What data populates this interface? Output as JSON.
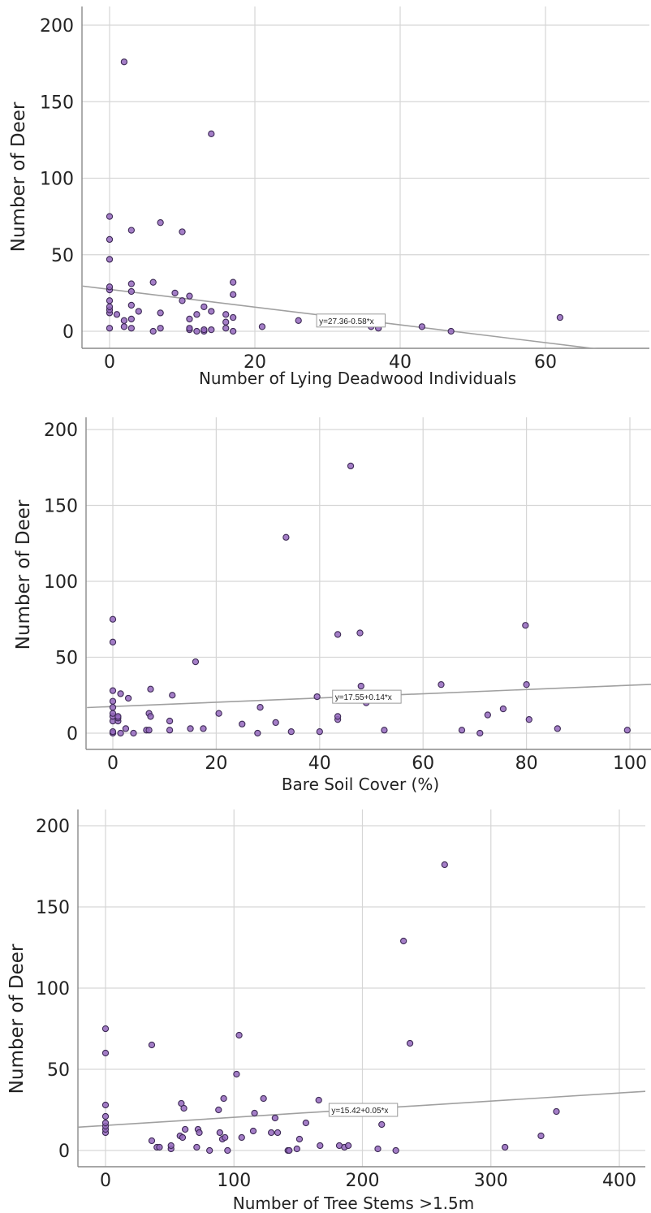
{
  "chart_data": [
    {
      "type": "scatter",
      "xlabel": "Number of Lying Deadwood Individuals",
      "ylabel": "Number of Deer",
      "xlim": [
        -3.7,
        74
      ],
      "ylim": [
        -11,
        210
      ],
      "xticks": [
        0,
        20,
        40,
        60
      ],
      "yticks": [
        0,
        50,
        100,
        150,
        200
      ],
      "grid": true,
      "point_color": "#9467bd",
      "fit": {
        "label": "y=27.36-0.58*x",
        "intercept": 27.36,
        "slope": -0.58,
        "label_at": [
          28.5,
          7
        ]
      },
      "points": [
        [
          0,
          2
        ],
        [
          0,
          12
        ],
        [
          0,
          14
        ],
        [
          0,
          16
        ],
        [
          0,
          20
        ],
        [
          0,
          27
        ],
        [
          0,
          29
        ],
        [
          0,
          47
        ],
        [
          0,
          60
        ],
        [
          0,
          75
        ],
        [
          1,
          11
        ],
        [
          2,
          3
        ],
        [
          2,
          7
        ],
        [
          2,
          176
        ],
        [
          3,
          2
        ],
        [
          3,
          8
        ],
        [
          3,
          17
        ],
        [
          3,
          26
        ],
        [
          3,
          31
        ],
        [
          3,
          66
        ],
        [
          4,
          13
        ],
        [
          6,
          0
        ],
        [
          6,
          32
        ],
        [
          7,
          2
        ],
        [
          7,
          12
        ],
        [
          7,
          71
        ],
        [
          9,
          25
        ],
        [
          10,
          20
        ],
        [
          10,
          65
        ],
        [
          11,
          1
        ],
        [
          11,
          2
        ],
        [
          11,
          8
        ],
        [
          11,
          23
        ],
        [
          12,
          0
        ],
        [
          12,
          11
        ],
        [
          13,
          0
        ],
        [
          13,
          1
        ],
        [
          13,
          16
        ],
        [
          14,
          1
        ],
        [
          14,
          13
        ],
        [
          14,
          129
        ],
        [
          16,
          2
        ],
        [
          16,
          6
        ],
        [
          16,
          11
        ],
        [
          17,
          0
        ],
        [
          17,
          9
        ],
        [
          17,
          24
        ],
        [
          17,
          32
        ],
        [
          21,
          3
        ],
        [
          26,
          7
        ],
        [
          36,
          3
        ],
        [
          37,
          2
        ],
        [
          43,
          3
        ],
        [
          47,
          0
        ],
        [
          62,
          9
        ]
      ]
    },
    {
      "type": "scatter",
      "xlabel": "Bare Soil Cover (%)",
      "ylabel": "Number of Deer",
      "xlim": [
        -5,
        103
      ],
      "ylim": [
        -11,
        210
      ],
      "xticks": [
        0,
        20,
        40,
        60,
        80,
        100
      ],
      "yticks": [
        0,
        50,
        100,
        150,
        200
      ],
      "grid": true,
      "point_color": "#9467bd",
      "fit": {
        "label": "y=17.55+0.14*x",
        "intercept": 17.55,
        "slope": 0.14,
        "label_at": [
          42.5,
          24
        ]
      },
      "points": [
        [
          0,
          0
        ],
        [
          0,
          1
        ],
        [
          0,
          8
        ],
        [
          0,
          11
        ],
        [
          0,
          13
        ],
        [
          0,
          17
        ],
        [
          0,
          21
        ],
        [
          0,
          28
        ],
        [
          0,
          60
        ],
        [
          0,
          75
        ],
        [
          1,
          8
        ],
        [
          1,
          10
        ],
        [
          1,
          11
        ],
        [
          1.5,
          0
        ],
        [
          1.5,
          26
        ],
        [
          2.5,
          3
        ],
        [
          3,
          23
        ],
        [
          4,
          0
        ],
        [
          6.5,
          2
        ],
        [
          7,
          2
        ],
        [
          7,
          13
        ],
        [
          7.3,
          11
        ],
        [
          7.3,
          29
        ],
        [
          11,
          2
        ],
        [
          11,
          8
        ],
        [
          11.5,
          25
        ],
        [
          15,
          3
        ],
        [
          16,
          47
        ],
        [
          17.5,
          3
        ],
        [
          20.5,
          13
        ],
        [
          25,
          6
        ],
        [
          28,
          0
        ],
        [
          28.5,
          17
        ],
        [
          31.5,
          7
        ],
        [
          33.5,
          129
        ],
        [
          34.5,
          1
        ],
        [
          39.5,
          24
        ],
        [
          40,
          1
        ],
        [
          43.5,
          9
        ],
        [
          43.5,
          11
        ],
        [
          43.5,
          65
        ],
        [
          46,
          176
        ],
        [
          47.8,
          66
        ],
        [
          48,
          31
        ],
        [
          49,
          20
        ],
        [
          52.5,
          2
        ],
        [
          63.5,
          32
        ],
        [
          67.5,
          2
        ],
        [
          71,
          0
        ],
        [
          72.5,
          12
        ],
        [
          75.5,
          16
        ],
        [
          79.8,
          71
        ],
        [
          80,
          32
        ],
        [
          80.5,
          9
        ],
        [
          86,
          3
        ],
        [
          99.5,
          2
        ]
      ]
    },
    {
      "type": "scatter",
      "xlabel": "Number of Tree Stems >1.5m",
      "ylabel": "Number of Deer",
      "xlim": [
        -22,
        425
      ],
      "ylim": [
        -11,
        210
      ],
      "xticks": [
        0,
        100,
        200,
        300,
        400
      ],
      "yticks": [
        0,
        50,
        100,
        150,
        200
      ],
      "grid": true,
      "point_color": "#9467bd",
      "fit": {
        "label": "y=15.42+0.05*x",
        "intercept": 15.42,
        "slope": 0.05,
        "label_at": [
          174,
          25
        ]
      },
      "points": [
        [
          0,
          11
        ],
        [
          0,
          13
        ],
        [
          0,
          15
        ],
        [
          0,
          17
        ],
        [
          0,
          21
        ],
        [
          0,
          28
        ],
        [
          0,
          60
        ],
        [
          0,
          75
        ],
        [
          36,
          6
        ],
        [
          36,
          65
        ],
        [
          40,
          2
        ],
        [
          42,
          2
        ],
        [
          51,
          1
        ],
        [
          51,
          3
        ],
        [
          58,
          9
        ],
        [
          59,
          29
        ],
        [
          60,
          8
        ],
        [
          61,
          26
        ],
        [
          62,
          13
        ],
        [
          71,
          2
        ],
        [
          72,
          13
        ],
        [
          73,
          11
        ],
        [
          81,
          0
        ],
        [
          88,
          25
        ],
        [
          89,
          11
        ],
        [
          91,
          7
        ],
        [
          92,
          32
        ],
        [
          93,
          8
        ],
        [
          95,
          0
        ],
        [
          102,
          47
        ],
        [
          104,
          71
        ],
        [
          106,
          8
        ],
        [
          115,
          12
        ],
        [
          116,
          23
        ],
        [
          123,
          32
        ],
        [
          129,
          11
        ],
        [
          132,
          20
        ],
        [
          134,
          11
        ],
        [
          142,
          0
        ],
        [
          143,
          0
        ],
        [
          149,
          1
        ],
        [
          151,
          7
        ],
        [
          156,
          17
        ],
        [
          166,
          31
        ],
        [
          167,
          3
        ],
        [
          182,
          3
        ],
        [
          186,
          2
        ],
        [
          189,
          3
        ],
        [
          212,
          1
        ],
        [
          215,
          16
        ],
        [
          226,
          0
        ],
        [
          232,
          129
        ],
        [
          237,
          66
        ],
        [
          264,
          176
        ],
        [
          311,
          2
        ],
        [
          339,
          9
        ],
        [
          351,
          24
        ]
      ]
    }
  ]
}
